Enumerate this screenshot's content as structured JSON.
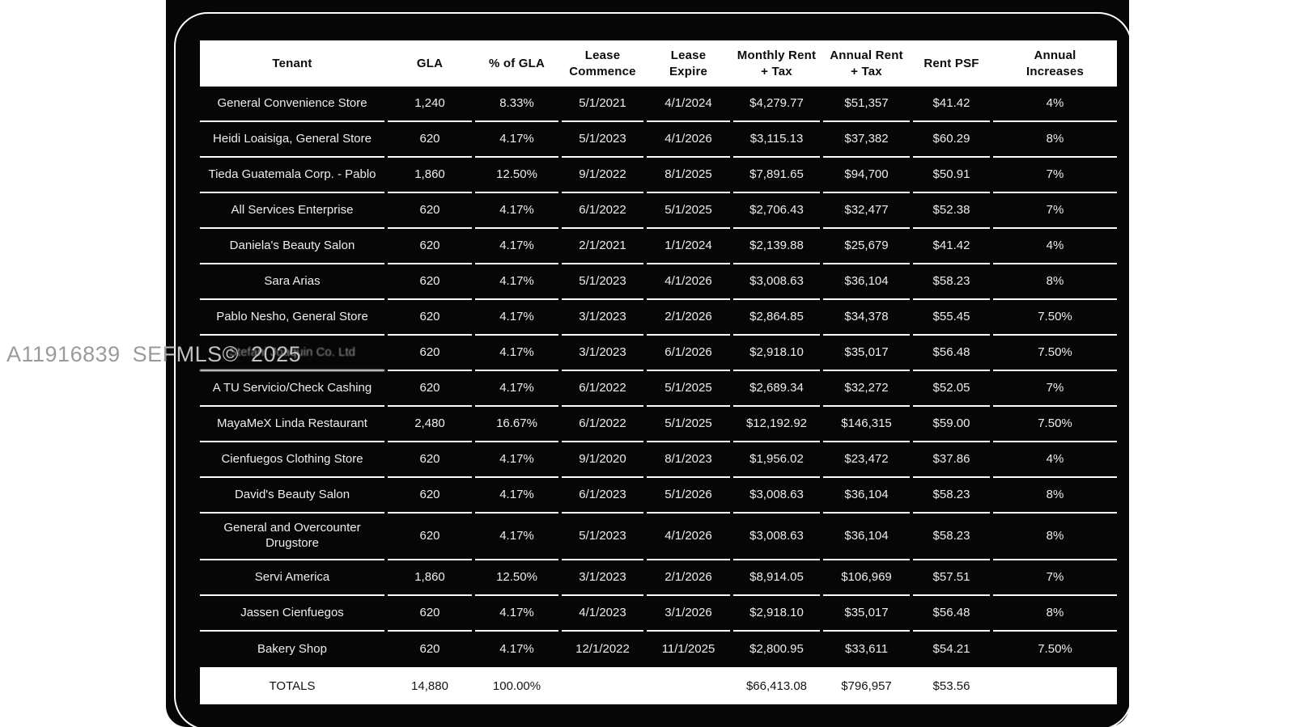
{
  "watermark": {
    "text": "A11916839 SEFMLS© 2025"
  },
  "table": {
    "columns": [
      "Tenant",
      "GLA",
      "% of GLA",
      "Lease\nCommence",
      "Lease\nExpire",
      "Monthly Rent\n+ Tax",
      "Annual Rent\n+ Tax",
      "Rent PSF",
      "Annual\nIncreases"
    ],
    "rows": [
      [
        "General Convenience Store",
        "1,240",
        "8.33%",
        "5/1/2021",
        "4/1/2024",
        "$4,279.77",
        "$51,357",
        "$41.42",
        "4%"
      ],
      [
        "Heidi Loaisiga, General Store",
        "620",
        "4.17%",
        "5/1/2023",
        "4/1/2026",
        "$3,115.13",
        "$37,382",
        "$60.29",
        "8%"
      ],
      [
        "Tieda Guatemala Corp. - Pablo",
        "1,860",
        "12.50%",
        "9/1/2022",
        "8/1/2025",
        "$7,891.65",
        "$94,700",
        "$50.91",
        "7%"
      ],
      [
        "All Services Enterprise",
        "620",
        "4.17%",
        "6/1/2022",
        "5/1/2025",
        "$2,706.43",
        "$32,477",
        "$52.38",
        "7%"
      ],
      [
        "Daniela's Beauty Salon",
        "620",
        "4.17%",
        "2/1/2021",
        "1/1/2024",
        "$2,139.88",
        "$25,679",
        "$41.42",
        "4%"
      ],
      [
        "Sara Arias",
        "620",
        "4.17%",
        "5/1/2023",
        "4/1/2026",
        "$3,008.63",
        "$36,104",
        "$58.23",
        "8%"
      ],
      [
        "Pablo Nesho, General Store",
        "620",
        "4.17%",
        "3/1/2023",
        "2/1/2026",
        "$2,864.85",
        "$34,378",
        "$55.45",
        "7.50%"
      ],
      [
        "Stefani Joaquin Co. Ltd",
        "620",
        "4.17%",
        "3/1/2023",
        "6/1/2026",
        "$2,918.10",
        "$35,017",
        "$56.48",
        "7.50%"
      ],
      [
        "A TU Servicio/Check Cashing",
        "620",
        "4.17%",
        "6/1/2022",
        "5/1/2025",
        "$2,689.34",
        "$32,272",
        "$52.05",
        "7%"
      ],
      [
        "MayaMeX Linda Restaurant",
        "2,480",
        "16.67%",
        "6/1/2022",
        "5/1/2025",
        "$12,192.92",
        "$146,315",
        "$59.00",
        "7.50%"
      ],
      [
        "Cienfuegos Clothing Store",
        "620",
        "4.17%",
        "9/1/2020",
        "8/1/2023",
        "$1,956.02",
        "$23,472",
        "$37.86",
        "4%"
      ],
      [
        "David's Beauty Salon",
        "620",
        "4.17%",
        "6/1/2023",
        "5/1/2026",
        "$3,008.63",
        "$36,104",
        "$58.23",
        "8%"
      ],
      [
        "General and Overcounter Drugstore",
        "620",
        "4.17%",
        "5/1/2023",
        "4/1/2026",
        "$3,008.63",
        "$36,104",
        "$58.23",
        "8%"
      ],
      [
        "Servi America",
        "1,860",
        "12.50%",
        "3/1/2023",
        "2/1/2026",
        "$8,914.05",
        "$106,969",
        "$57.51",
        "7%"
      ],
      [
        "Jassen Cienfuegos",
        "620",
        "4.17%",
        "4/1/2023",
        "3/1/2026",
        "$2,918.10",
        "$35,017",
        "$56.48",
        "8%"
      ],
      [
        "Bakery Shop",
        "620",
        "4.17%",
        "12/1/2022",
        "11/1/2025",
        "$2,800.95",
        "$33,611",
        "$54.21",
        "7.50%"
      ]
    ],
    "totals": [
      "TOTALS",
      "14,880",
      "100.00%",
      "",
      "",
      "$66,413.08",
      "$796,957",
      "$53.56",
      ""
    ],
    "obscured_row_index": 7
  },
  "colors": {
    "panel_background": "#060606",
    "row_text": "#ededed",
    "header_background": "#ffffff",
    "header_text": "#0c0c0c",
    "separator": "#ffffff",
    "watermark_gray": "#9a9a9a"
  }
}
